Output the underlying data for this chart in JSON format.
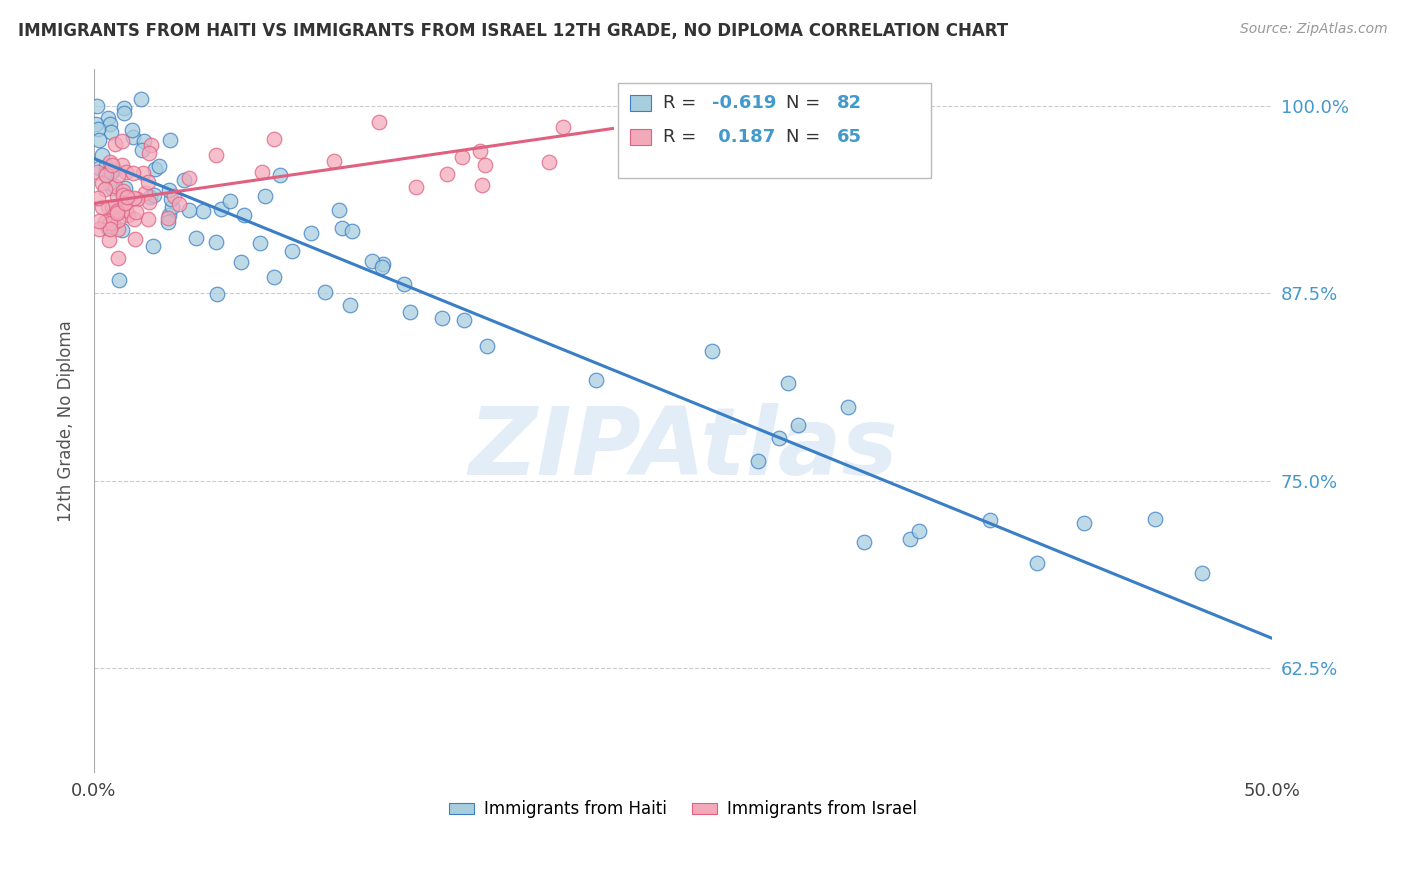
{
  "title": "IMMIGRANTS FROM HAITI VS IMMIGRANTS FROM ISRAEL 12TH GRADE, NO DIPLOMA CORRELATION CHART",
  "source": "Source: ZipAtlas.com",
  "ylabel_label": "12th Grade, No Diploma",
  "legend_label1": "Immigrants from Haiti",
  "legend_label2": "Immigrants from Israel",
  "R_haiti": -0.619,
  "N_haiti": 82,
  "R_israel": 0.187,
  "N_israel": 65,
  "xlim": [
    0.0,
    0.5
  ],
  "ylim": [
    0.555,
    1.025
  ],
  "yticks": [
    0.625,
    0.75,
    0.875,
    1.0
  ],
  "ytick_labels": [
    "62.5%",
    "75.0%",
    "87.5%",
    "100.0%"
  ],
  "xtick_positions": [
    0.0,
    0.1,
    0.2,
    0.3,
    0.4,
    0.5
  ],
  "xtick_labels": [
    "0.0%",
    "",
    "",
    "",
    "",
    "50.0%"
  ],
  "haiti_color": "#A8CEDE",
  "israel_color": "#F2AABB",
  "haiti_line_color": "#3A7EC6",
  "israel_line_color": "#E06080",
  "watermark": "ZIPAtlas",
  "haiti_seed": 42,
  "israel_seed": 123,
  "haiti_trend_x0": 0.0,
  "haiti_trend_x1": 0.5,
  "haiti_trend_y0": 0.965,
  "haiti_trend_y1": 0.645,
  "israel_trend_x0": 0.0,
  "israel_trend_x1": 0.22,
  "israel_trend_y0": 0.935,
  "israel_trend_y1": 0.985
}
